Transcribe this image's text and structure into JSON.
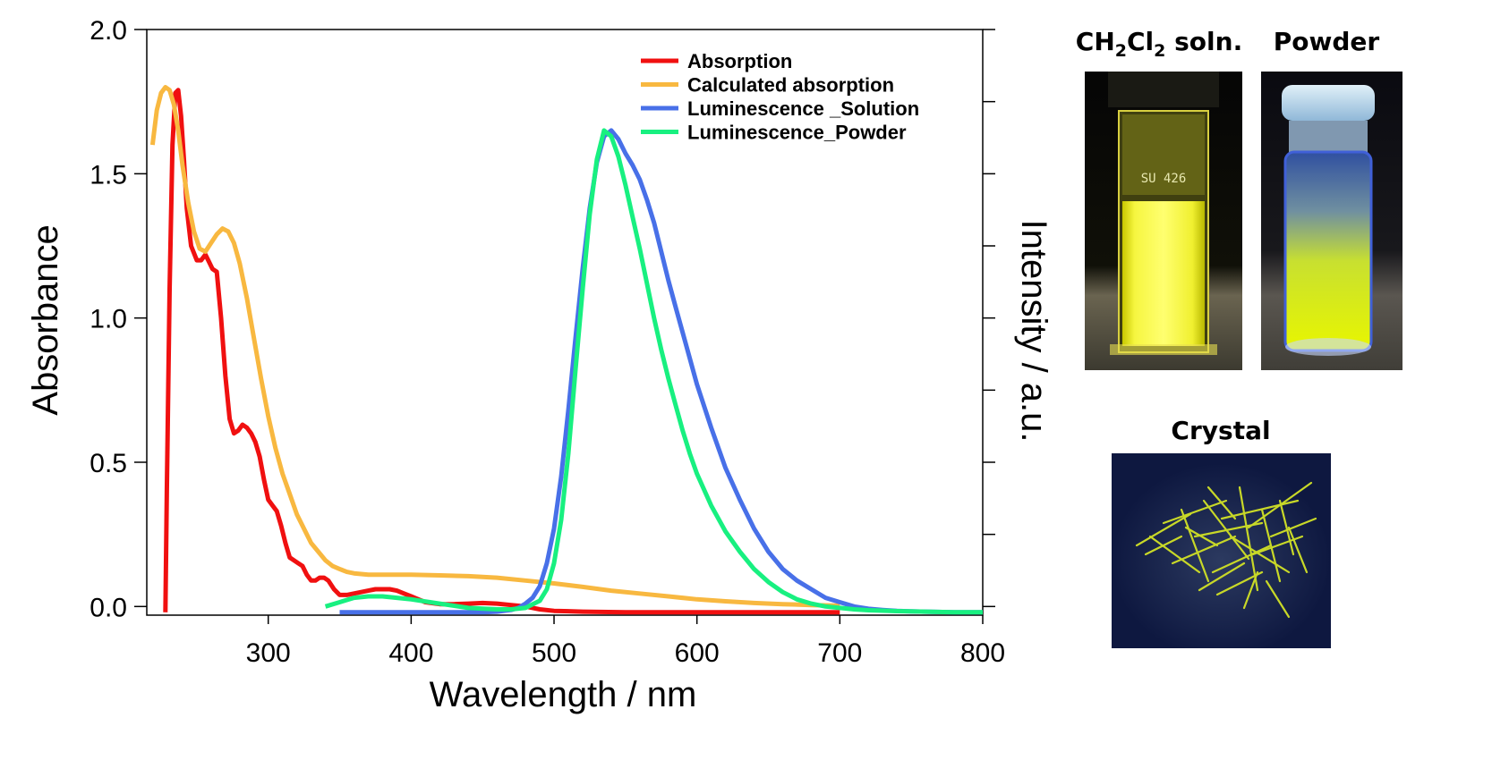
{
  "chart_data": {
    "type": "line",
    "xlabel": "Wavelength / nm",
    "ylabel": "Absorbance",
    "y2label": "Intensity / a.u.",
    "xlim": [
      215,
      800
    ],
    "ylim": [
      -0.03,
      2.0
    ],
    "xticks": [
      "300",
      "400",
      "500",
      "600",
      "700",
      "800"
    ],
    "yticks": [
      "0.0",
      "0.5",
      "1.0",
      "1.5",
      "2.0"
    ],
    "grid": false,
    "legend_position": "top-right",
    "series": [
      {
        "name": "Absorption",
        "color": "#f01010",
        "x": [
          228,
          229,
          231,
          233,
          235,
          237,
          239,
          241,
          243,
          246,
          250,
          253,
          256,
          258,
          261,
          264,
          267,
          270,
          273,
          276,
          279,
          282,
          285,
          288,
          291,
          294,
          297,
          300,
          303,
          306,
          309,
          312,
          315,
          318,
          321,
          324,
          327,
          330,
          333,
          336,
          339,
          342,
          346,
          350,
          355,
          360,
          365,
          370,
          375,
          380,
          385,
          390,
          395,
          400,
          405,
          410,
          420,
          430,
          440,
          450,
          460,
          470,
          480,
          490,
          500,
          520,
          550,
          600,
          650,
          700
        ],
        "y": [
          -0.02,
          0.4,
          1.1,
          1.6,
          1.78,
          1.79,
          1.7,
          1.55,
          1.38,
          1.25,
          1.2,
          1.2,
          1.22,
          1.2,
          1.17,
          1.16,
          1.0,
          0.8,
          0.65,
          0.6,
          0.61,
          0.63,
          0.62,
          0.6,
          0.57,
          0.52,
          0.44,
          0.37,
          0.35,
          0.33,
          0.28,
          0.22,
          0.17,
          0.16,
          0.15,
          0.14,
          0.11,
          0.09,
          0.09,
          0.1,
          0.1,
          0.09,
          0.06,
          0.04,
          0.04,
          0.045,
          0.05,
          0.055,
          0.06,
          0.06,
          0.06,
          0.055,
          0.045,
          0.035,
          0.025,
          0.015,
          0.008,
          0.008,
          0.01,
          0.012,
          0.01,
          0.005,
          0.0,
          -0.01,
          -0.015,
          -0.018,
          -0.02,
          -0.02,
          -0.02,
          -0.02
        ]
      },
      {
        "name": "Calculated absorption",
        "color": "#f8b840",
        "x": [
          219,
          222,
          225,
          228,
          231,
          234,
          237,
          240,
          244,
          248,
          252,
          256,
          260,
          264,
          268,
          272,
          276,
          280,
          285,
          290,
          295,
          300,
          305,
          310,
          315,
          320,
          325,
          330,
          335,
          340,
          345,
          350,
          355,
          360,
          370,
          380,
          400,
          420,
          440,
          460,
          480,
          500,
          520,
          540,
          560,
          580,
          600,
          620,
          640,
          660,
          680,
          700
        ],
        "y": [
          1.6,
          1.72,
          1.78,
          1.8,
          1.79,
          1.74,
          1.65,
          1.53,
          1.4,
          1.3,
          1.24,
          1.23,
          1.26,
          1.29,
          1.31,
          1.3,
          1.26,
          1.19,
          1.07,
          0.93,
          0.79,
          0.66,
          0.55,
          0.46,
          0.39,
          0.32,
          0.27,
          0.22,
          0.19,
          0.16,
          0.14,
          0.13,
          0.12,
          0.115,
          0.11,
          0.11,
          0.11,
          0.108,
          0.105,
          0.1,
          0.09,
          0.08,
          0.068,
          0.055,
          0.045,
          0.035,
          0.025,
          0.018,
          0.012,
          0.008,
          0.005,
          0.003
        ]
      },
      {
        "name": "Luminescence _Solution",
        "color": "#4870e8",
        "x": [
          350,
          400,
          450,
          460,
          470,
          475,
          480,
          485,
          490,
          495,
          500,
          505,
          510,
          515,
          520,
          525,
          530,
          535,
          540,
          545,
          550,
          555,
          560,
          565,
          570,
          575,
          580,
          585,
          590,
          595,
          600,
          610,
          620,
          630,
          640,
          650,
          660,
          670,
          680,
          690,
          700,
          710,
          720,
          730,
          740,
          750,
          760,
          780,
          800
        ],
        "y": [
          -0.02,
          -0.02,
          -0.02,
          -0.018,
          -0.012,
          -0.005,
          0.01,
          0.03,
          0.07,
          0.15,
          0.27,
          0.45,
          0.68,
          0.93,
          1.17,
          1.38,
          1.54,
          1.63,
          1.65,
          1.62,
          1.57,
          1.53,
          1.48,
          1.41,
          1.33,
          1.23,
          1.13,
          1.04,
          0.95,
          0.86,
          0.77,
          0.62,
          0.48,
          0.37,
          0.27,
          0.19,
          0.13,
          0.09,
          0.06,
          0.03,
          0.015,
          0.0,
          -0.008,
          -0.012,
          -0.015,
          -0.017,
          -0.018,
          -0.02,
          -0.02
        ]
      },
      {
        "name": "Luminescence_Powder",
        "color": "#18f080",
        "x": [
          340,
          350,
          360,
          370,
          380,
          390,
          400,
          420,
          440,
          460,
          470,
          480,
          490,
          495,
          500,
          505,
          510,
          515,
          520,
          525,
          530,
          535,
          540,
          545,
          550,
          555,
          560,
          565,
          570,
          575,
          580,
          585,
          590,
          595,
          600,
          610,
          620,
          630,
          640,
          650,
          660,
          670,
          680,
          690,
          700,
          710,
          720,
          740,
          760,
          780,
          800
        ],
        "y": [
          0.0,
          0.015,
          0.03,
          0.035,
          0.035,
          0.03,
          0.025,
          0.01,
          -0.005,
          -0.01,
          -0.01,
          -0.005,
          0.02,
          0.06,
          0.15,
          0.3,
          0.53,
          0.82,
          1.1,
          1.36,
          1.55,
          1.65,
          1.63,
          1.56,
          1.46,
          1.35,
          1.24,
          1.12,
          1.0,
          0.89,
          0.79,
          0.7,
          0.61,
          0.53,
          0.46,
          0.35,
          0.26,
          0.19,
          0.13,
          0.085,
          0.05,
          0.025,
          0.01,
          0.0,
          -0.005,
          -0.01,
          -0.013,
          -0.016,
          -0.018,
          -0.02,
          -0.02
        ]
      }
    ]
  },
  "photos": {
    "solution": {
      "label_main": "CH",
      "label_sub1": "2",
      "label_mid": "Cl",
      "label_sub2": "2",
      "label_end": " soln.",
      "cuvette_marking": "SU 426"
    },
    "powder": {
      "label": "Powder"
    },
    "crystal": {
      "label": "Crystal"
    }
  }
}
